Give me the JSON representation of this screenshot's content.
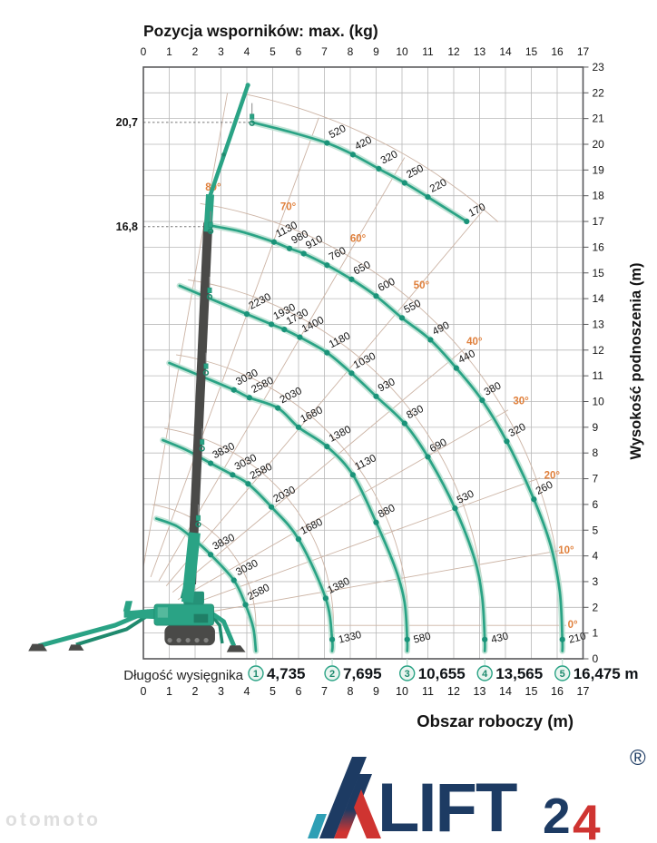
{
  "title": "Pozycja wsporników: max. (kg)",
  "axes": {
    "x_top_ticks": [
      "0",
      "1",
      "2",
      "3",
      "4",
      "5",
      "6",
      "7",
      "8",
      "9",
      "10",
      "11",
      "12",
      "13",
      "14",
      "15",
      "16",
      "17"
    ],
    "x_bottom_ticks": [
      "0",
      "1",
      "2",
      "3",
      "4",
      "5",
      "6",
      "7",
      "8",
      "9",
      "10",
      "11",
      "12",
      "13",
      "14",
      "15",
      "16",
      "17"
    ],
    "y_right_ticks": [
      "0",
      "1",
      "2",
      "3",
      "4",
      "5",
      "6",
      "7",
      "8",
      "9",
      "10",
      "11",
      "12",
      "13",
      "14",
      "15",
      "16",
      "17",
      "18",
      "19",
      "20",
      "21",
      "22",
      "23"
    ],
    "x_axis_title": "Obszar roboczy (m)",
    "y_axis_title": "Wysokość podnoszenia (m)",
    "x_range": [
      0,
      17
    ],
    "y_range": [
      0,
      23
    ]
  },
  "height_markers": [
    {
      "label": "20,7",
      "y": 20.85,
      "x_end": 4.15
    },
    {
      "label": "16,8",
      "y": 16.8,
      "x_end": 2.58
    }
  ],
  "boom_length_row": {
    "label": "Długość wysięgnika",
    "unit": "m",
    "stages": [
      {
        "num": "1",
        "value": "4,735",
        "x": 4.35
      },
      {
        "num": "2",
        "value": "7,695",
        "x": 7.3
      },
      {
        "num": "3",
        "value": "10,655",
        "x": 10.2
      },
      {
        "num": "4",
        "value": "13,565",
        "x": 13.2
      },
      {
        "num": "5",
        "value": "16,475",
        "x": 16.2
      }
    ]
  },
  "chart_data": {
    "type": "line",
    "title": "Pozycja wsporników: max. (kg)",
    "xlabel": "Obszar roboczy (m)",
    "ylabel": "Wysokość podnoszenia (m)",
    "xlim": [
      0,
      17
    ],
    "ylim": [
      0,
      23
    ],
    "load_unit": "kg",
    "pivot": {
      "x": -0.4,
      "y": 1.3
    },
    "angle_guides_deg": [
      0,
      10,
      20,
      30,
      40,
      50,
      60,
      70,
      80
    ],
    "angle_labels": [
      {
        "label": "80°",
        "x": 2.7,
        "y": 18.2
      },
      {
        "label": "70°",
        "x": 5.6,
        "y": 17.45
      },
      {
        "label": "60°",
        "x": 8.3,
        "y": 16.2
      },
      {
        "label": "50°",
        "x": 10.75,
        "y": 14.4
      },
      {
        "label": "40°",
        "x": 12.8,
        "y": 12.2
      },
      {
        "label": "30°",
        "x": 14.6,
        "y": 9.9
      },
      {
        "label": "20°",
        "x": 15.8,
        "y": 7.0
      },
      {
        "label": "10°",
        "x": 16.35,
        "y": 4.1
      },
      {
        "label": "0°",
        "x": 16.6,
        "y": 1.2
      }
    ],
    "stage_radii_m": [
      4.75,
      7.75,
      10.65,
      13.6,
      16.6
    ],
    "jib_envelope": {
      "radius_m": 21.1,
      "deg_from": 78,
      "deg_to": 47.5
    },
    "series": [
      {
        "name": "jib",
        "points": [
          {
            "x": 4.22,
            "y": 20.85
          },
          {
            "x": 5.6,
            "y": 20.5
          },
          {
            "x": 7.1,
            "y": 20.05,
            "load": "520"
          },
          {
            "x": 8.1,
            "y": 19.6,
            "load": "420"
          },
          {
            "x": 9.1,
            "y": 19.05,
            "load": "320"
          },
          {
            "x": 10.1,
            "y": 18.5,
            "load": "250"
          },
          {
            "x": 11.0,
            "y": 17.95,
            "load": "220"
          },
          {
            "x": 12.5,
            "y": 17.0,
            "load": "170"
          }
        ]
      },
      {
        "name": "stage-5",
        "points": [
          {
            "x": 2.55,
            "y": 16.85
          },
          {
            "x": 3.8,
            "y": 16.6
          },
          {
            "x": 5.05,
            "y": 16.2,
            "load": "1130"
          },
          {
            "x": 5.65,
            "y": 15.95,
            "load": "980"
          },
          {
            "x": 6.2,
            "y": 15.75,
            "load": "910"
          },
          {
            "x": 7.1,
            "y": 15.3,
            "load": "760"
          },
          {
            "x": 8.05,
            "y": 14.75,
            "load": "650"
          },
          {
            "x": 9.0,
            "y": 14.1,
            "load": "600"
          },
          {
            "x": 10.0,
            "y": 13.25,
            "load": "550"
          },
          {
            "x": 11.1,
            "y": 12.4,
            "load": "490"
          },
          {
            "x": 12.1,
            "y": 11.3,
            "load": "440"
          },
          {
            "x": 13.1,
            "y": 10.05,
            "load": "380"
          },
          {
            "x": 14.05,
            "y": 8.45,
            "load": "320"
          },
          {
            "x": 15.1,
            "y": 6.2,
            "load": "260"
          },
          {
            "x": 15.75,
            "y": 4.4
          },
          {
            "x": 16.1,
            "y": 2.6
          },
          {
            "x": 16.2,
            "y": 0.75,
            "load": "210",
            "pos": "bottom"
          },
          {
            "x": 16.2,
            "y": 0.3
          }
        ]
      },
      {
        "name": "stage-4",
        "points": [
          {
            "x": 1.4,
            "y": 14.5
          },
          {
            "x": 2.7,
            "y": 13.95
          },
          {
            "x": 4.0,
            "y": 13.4,
            "load": "2230"
          },
          {
            "x": 4.95,
            "y": 13.0,
            "load": "1930"
          },
          {
            "x": 5.45,
            "y": 12.8,
            "load": "1730"
          },
          {
            "x": 6.05,
            "y": 12.5,
            "load": "1400"
          },
          {
            "x": 7.1,
            "y": 11.9,
            "load": "1180"
          },
          {
            "x": 8.05,
            "y": 11.1,
            "load": "1030"
          },
          {
            "x": 9.0,
            "y": 10.2,
            "load": "930"
          },
          {
            "x": 10.1,
            "y": 9.15,
            "load": "830"
          },
          {
            "x": 11.0,
            "y": 7.85,
            "load": "690"
          },
          {
            "x": 12.05,
            "y": 5.85,
            "load": "530"
          },
          {
            "x": 12.8,
            "y": 3.9
          },
          {
            "x": 13.1,
            "y": 2.4
          },
          {
            "x": 13.2,
            "y": 0.75,
            "load": "430",
            "pos": "bottom"
          },
          {
            "x": 13.2,
            "y": 0.3
          }
        ]
      },
      {
        "name": "stage-3",
        "points": [
          {
            "x": 1.0,
            "y": 11.5
          },
          {
            "x": 2.2,
            "y": 11.0
          },
          {
            "x": 3.5,
            "y": 10.45,
            "load": "3030"
          },
          {
            "x": 4.1,
            "y": 10.15,
            "load": "2580"
          },
          {
            "x": 5.2,
            "y": 9.75,
            "load": "2030"
          },
          {
            "x": 6.0,
            "y": 9.0,
            "load": "1680"
          },
          {
            "x": 7.1,
            "y": 8.25,
            "load": "1380"
          },
          {
            "x": 8.1,
            "y": 7.15,
            "load": "1130"
          },
          {
            "x": 9.0,
            "y": 5.3,
            "load": "880"
          },
          {
            "x": 9.75,
            "y": 3.5
          },
          {
            "x": 10.1,
            "y": 2.2
          },
          {
            "x": 10.2,
            "y": 0.75,
            "load": "580",
            "pos": "bottom"
          },
          {
            "x": 10.2,
            "y": 0.3
          }
        ]
      },
      {
        "name": "stage-2",
        "points": [
          {
            "x": 0.75,
            "y": 8.5
          },
          {
            "x": 1.7,
            "y": 8.1
          },
          {
            "x": 2.6,
            "y": 7.6,
            "load": "3830"
          },
          {
            "x": 3.45,
            "y": 7.15,
            "load": "3030"
          },
          {
            "x": 4.05,
            "y": 6.8,
            "load": "2580"
          },
          {
            "x": 4.95,
            "y": 5.9,
            "load": "2030"
          },
          {
            "x": 6.0,
            "y": 4.65,
            "load": "1680"
          },
          {
            "x": 7.05,
            "y": 2.35,
            "load": "1380"
          },
          {
            "x": 7.3,
            "y": 0.75,
            "load": "1330",
            "pos": "bottom"
          },
          {
            "x": 7.3,
            "y": 0.3
          }
        ]
      },
      {
        "name": "stage-1",
        "points": [
          {
            "x": 0.5,
            "y": 5.45
          },
          {
            "x": 1.3,
            "y": 5.15
          },
          {
            "x": 1.95,
            "y": 4.65
          },
          {
            "x": 2.6,
            "y": 4.05,
            "load": "3830"
          },
          {
            "x": 3.5,
            "y": 3.05,
            "load": "3030"
          },
          {
            "x": 3.95,
            "y": 2.1,
            "load": "2580"
          },
          {
            "x": 4.25,
            "y": 1.2
          },
          {
            "x": 4.35,
            "y": 0.3
          }
        ]
      }
    ]
  },
  "logo": {
    "lift": "LIFT",
    "two": "2",
    "four": "4",
    "reg": "®"
  },
  "watermark": "otomoto",
  "colors": {
    "teal": "#2aa385",
    "teal_dark": "#1f8a6e",
    "teal_halo": "#b8dfd0",
    "dot": "#1a9379",
    "gray_machine": "#4a4a48",
    "grid": "#b9b9b9",
    "border": "#58585a",
    "tan": "#ccb4a5",
    "orange": "#e0803c",
    "text": "#141414",
    "navy": "#1d3b63",
    "red": "#cf3431",
    "logo_teal": "#2f9fb5"
  }
}
